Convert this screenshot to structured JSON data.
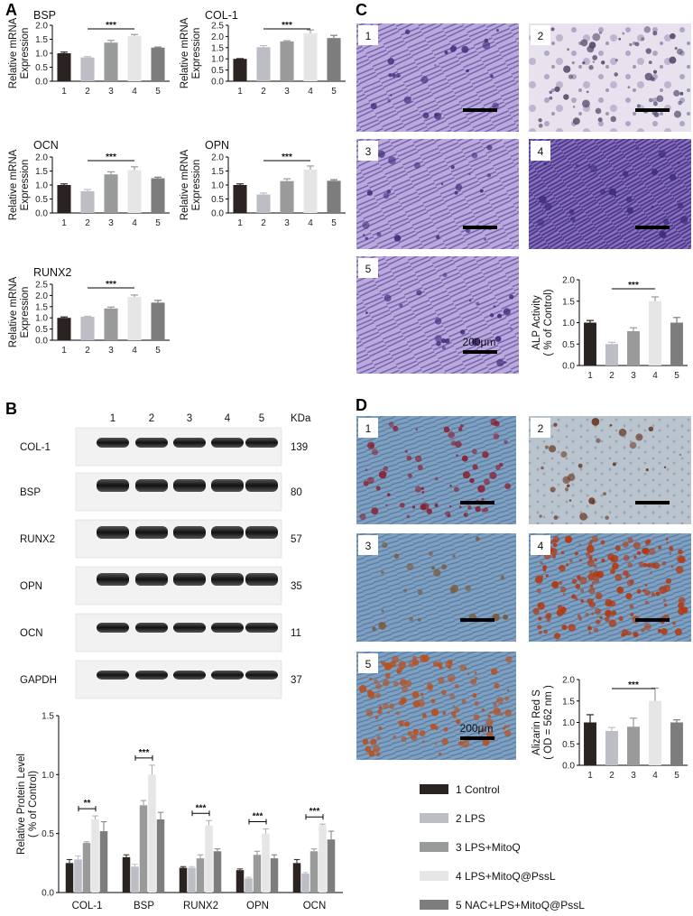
{
  "panel_letters": {
    "a": "A",
    "b": "B",
    "c": "C",
    "d": "D"
  },
  "colors": {
    "g1": "#2b2322",
    "g2": "#bdbdc6",
    "g3": "#999a9a",
    "g4": "#e6e6e6",
    "g5": "#7d7d7d",
    "crystal_violet": "#7a63b5",
    "alizarin": "#b24a2a",
    "blot_band": "#1a1a1a"
  },
  "group_ticks": [
    "1",
    "2",
    "3",
    "4",
    "5"
  ],
  "sig_label": "***",
  "sig_label_2": "**",
  "mrna_ylabel_line1": "Relative mRNA",
  "mrna_ylabel_line2": "Expression",
  "chart_data": [
    {
      "id": "mrna-bsp",
      "type": "bar",
      "title": "BSP",
      "categories": [
        "1",
        "2",
        "3",
        "4",
        "5"
      ],
      "values": [
        1.0,
        0.85,
        1.38,
        1.62,
        1.2
      ],
      "errors": [
        0.04,
        0.03,
        0.08,
        0.05,
        0.02
      ],
      "ylim": [
        0,
        2.0
      ],
      "yticks": [
        "0.0",
        "0.5",
        "1.0",
        "1.5",
        "2.0"
      ],
      "ylabel": "Relative mRNA Expression",
      "significance": "***"
    },
    {
      "id": "mrna-col1",
      "type": "bar",
      "title": "COL-1",
      "categories": [
        "1",
        "2",
        "3",
        "4",
        "5"
      ],
      "values": [
        1.0,
        1.52,
        1.78,
        2.15,
        1.93
      ],
      "errors": [
        0.01,
        0.07,
        0.03,
        0.14,
        0.12
      ],
      "ylim": [
        0,
        2.5
      ],
      "yticks": [
        "0.0",
        "0.5",
        "1.0",
        "1.5",
        "2.0",
        "2.5"
      ],
      "ylabel": "Relative mRNA Expression",
      "significance": "***"
    },
    {
      "id": "mrna-ocn",
      "type": "bar",
      "title": "OCN",
      "categories": [
        "1",
        "2",
        "3",
        "4",
        "5"
      ],
      "values": [
        1.0,
        0.78,
        1.38,
        1.53,
        1.24
      ],
      "errors": [
        0.04,
        0.06,
        0.09,
        0.12,
        0.04
      ],
      "ylim": [
        0,
        2.0
      ],
      "yticks": [
        "0.0",
        "0.5",
        "1.0",
        "1.5",
        "2.0"
      ],
      "ylabel": "Relative mRNA Expression",
      "significance": "***"
    },
    {
      "id": "mrna-opn",
      "type": "bar",
      "title": "OPN",
      "categories": [
        "1",
        "2",
        "3",
        "4",
        "5"
      ],
      "values": [
        1.0,
        0.66,
        1.14,
        1.55,
        1.15
      ],
      "errors": [
        0.04,
        0.05,
        0.08,
        0.13,
        0.04
      ],
      "ylim": [
        0,
        2.0
      ],
      "yticks": [
        "0.0",
        "0.5",
        "1.0",
        "1.5",
        "2.0"
      ],
      "ylabel": "Relative mRNA Expression",
      "significance": "***"
    },
    {
      "id": "mrna-runx2",
      "type": "bar",
      "title": "RUNX2",
      "categories": [
        "1",
        "2",
        "3",
        "4",
        "5"
      ],
      "values": [
        1.0,
        1.05,
        1.42,
        1.93,
        1.68
      ],
      "errors": [
        0.04,
        0.02,
        0.06,
        0.09,
        0.1
      ],
      "ylim": [
        0,
        2.5
      ],
      "yticks": [
        "0.0",
        "0.5",
        "1.0",
        "1.5",
        "2.0",
        "2.5"
      ],
      "ylabel": "Relative mRNA Expression",
      "significance": "***"
    },
    {
      "id": "alp",
      "type": "bar",
      "title": "",
      "categories": [
        "1",
        "2",
        "3",
        "4",
        "5"
      ],
      "values": [
        1.0,
        0.5,
        0.8,
        1.5,
        1.0
      ],
      "errors": [
        0.05,
        0.04,
        0.08,
        0.1,
        0.12
      ],
      "ylim": [
        0,
        2.0
      ],
      "yticks": [
        "0.0",
        "0.5",
        "1.0",
        "1.5",
        "2.0"
      ],
      "ylabel": "ALP Activity ( % of Control)",
      "significance": "***"
    },
    {
      "id": "alizarin",
      "type": "bar",
      "title": "",
      "categories": [
        "1",
        "2",
        "3",
        "4",
        "5"
      ],
      "values": [
        1.0,
        0.8,
        0.9,
        1.5,
        1.0
      ],
      "errors": [
        0.18,
        0.08,
        0.2,
        0.3,
        0.06
      ],
      "ylim": [
        0,
        2.0
      ],
      "yticks": [
        "0.0",
        "0.5",
        "1.0",
        "1.5",
        "2.0"
      ],
      "ylabel": "Alizarin Red S ( OD = 562 nm )",
      "significance": "***"
    },
    {
      "id": "protein",
      "type": "bar",
      "title": "",
      "categories": [
        "COL-1",
        "BSP",
        "RUNX2",
        "OPN",
        "OCN"
      ],
      "series": [
        {
          "name": "1 Control",
          "values": [
            0.25,
            0.3,
            0.21,
            0.19,
            0.25
          ],
          "errors": [
            0.03,
            0.02,
            0.01,
            0.01,
            0.03
          ]
        },
        {
          "name": "2 LPS",
          "values": [
            0.28,
            0.22,
            0.21,
            0.12,
            0.16
          ],
          "errors": [
            0.03,
            0.02,
            0.01,
            0.01,
            0.01
          ]
        },
        {
          "name": "3 LPS+MitoQ",
          "values": [
            0.42,
            0.74,
            0.29,
            0.32,
            0.35
          ],
          "errors": [
            0.01,
            0.04,
            0.03,
            0.03,
            0.02
          ]
        },
        {
          "name": "4 LPS+MitoQ@PssL",
          "values": [
            0.62,
            1.0,
            0.57,
            0.5,
            0.57
          ],
          "errors": [
            0.03,
            0.08,
            0.04,
            0.04,
            0.01
          ]
        },
        {
          "name": "5 NAC+LPS+MitoQ@PssL",
          "values": [
            0.52,
            0.62,
            0.35,
            0.29,
            0.45
          ],
          "errors": [
            0.08,
            0.06,
            0.02,
            0.03,
            0.07
          ]
        }
      ],
      "ylim": [
        0,
        1.5
      ],
      "yticks": [
        "0.0",
        "0.5",
        "1.0",
        "1.5"
      ],
      "ylabel": "Relative Protein Level ( % of Control)",
      "significance": [
        "**",
        "***",
        "***",
        "***",
        "***"
      ]
    }
  ],
  "western_blot": {
    "lane_labels": [
      "1",
      "2",
      "3",
      "4",
      "5"
    ],
    "kda_header": "KDa",
    "rows": [
      {
        "name": "COL-1",
        "kda": "139"
      },
      {
        "name": "BSP",
        "kda": "80"
      },
      {
        "name": "RUNX2",
        "kda": "57"
      },
      {
        "name": "OPN",
        "kda": "35"
      },
      {
        "name": "OCN",
        "kda": "11"
      },
      {
        "name": "GAPDH",
        "kda": "37"
      }
    ]
  },
  "micrographs": {
    "c_labels": [
      "1",
      "2",
      "3",
      "4",
      "5"
    ],
    "d_labels": [
      "1",
      "2",
      "3",
      "4",
      "5"
    ],
    "scale_label": "200μm"
  },
  "legend": {
    "items": [
      {
        "label": "1 Control",
        "color": "#2b2322"
      },
      {
        "label": "2 LPS",
        "color": "#bdbdc6"
      },
      {
        "label": "3 LPS+MitoQ",
        "color": "#999a9a"
      },
      {
        "label": "4 LPS+MitoQ@PssL",
        "color": "#e6e6e6"
      },
      {
        "label": "5 NAC+LPS+MitoQ@PssL",
        "color": "#7d7d7d"
      }
    ]
  }
}
